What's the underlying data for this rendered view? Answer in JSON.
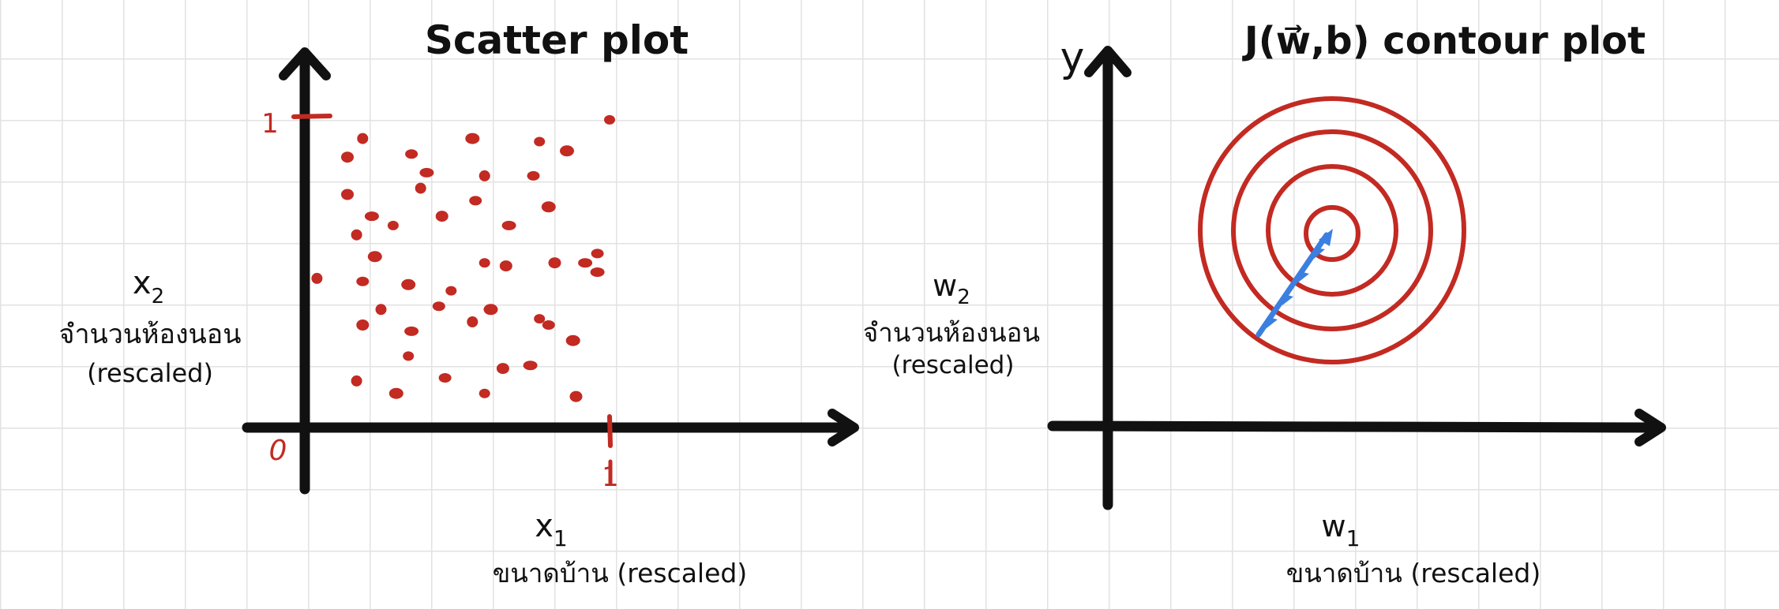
{
  "colors": {
    "ink": "#111111",
    "points": "#c22a22",
    "contour": "#c22a22",
    "arrow": "#3b7fe0",
    "grid": "#e2e2e2"
  },
  "scatter": {
    "title": "Scatter plot",
    "x_label": "x",
    "x_subscript": "1",
    "x_desc": "ขนาดบ้าน (rescaled)",
    "y_label": "x",
    "y_subscript": "2",
    "y_desc_line1": "จำนวนห้องนอน",
    "y_desc_line2": "(rescaled)",
    "origin_label": "0",
    "x_tick_label": "1",
    "y_tick_label": "1"
  },
  "contour": {
    "title": "J(w⃗,b) contour plot",
    "y_axis_label": "y",
    "x_label": "w",
    "x_subscript": "1",
    "x_desc": "ขนาดบ้าน (rescaled)",
    "y_label": "w",
    "y_subscript": "2",
    "y_desc_line1": "จำนวนห้องนอน",
    "y_desc_line2": "(rescaled)"
  },
  "chart_data": [
    {
      "type": "scatter",
      "title": "Scatter plot",
      "xlabel": "x1 ขนาดบ้าน (rescaled)",
      "ylabel": "x2 จำนวนห้องนอน (rescaled)",
      "xlim": [
        0,
        1
      ],
      "ylim": [
        0,
        1
      ],
      "grid": true,
      "points": [
        [
          0.19,
          0.93
        ],
        [
          0.35,
          0.88
        ],
        [
          0.55,
          0.93
        ],
        [
          0.77,
          0.92
        ],
        [
          0.14,
          0.87
        ],
        [
          0.4,
          0.82
        ],
        [
          0.59,
          0.81
        ],
        [
          0.75,
          0.81
        ],
        [
          0.86,
          0.89
        ],
        [
          1.0,
          0.99
        ],
        [
          0.14,
          0.75
        ],
        [
          0.22,
          0.68
        ],
        [
          0.38,
          0.77
        ],
        [
          0.56,
          0.73
        ],
        [
          0.8,
          0.71
        ],
        [
          0.29,
          0.65
        ],
        [
          0.45,
          0.68
        ],
        [
          0.67,
          0.65
        ],
        [
          0.17,
          0.62
        ],
        [
          0.96,
          0.56
        ],
        [
          0.23,
          0.55
        ],
        [
          0.59,
          0.53
        ],
        [
          0.82,
          0.53
        ],
        [
          0.92,
          0.53
        ],
        [
          0.04,
          0.48
        ],
        [
          0.19,
          0.47
        ],
        [
          0.34,
          0.46
        ],
        [
          0.48,
          0.44
        ],
        [
          0.66,
          0.52
        ],
        [
          0.96,
          0.5
        ],
        [
          0.25,
          0.38
        ],
        [
          0.44,
          0.39
        ],
        [
          0.61,
          0.38
        ],
        [
          0.77,
          0.35
        ],
        [
          0.19,
          0.33
        ],
        [
          0.35,
          0.31
        ],
        [
          0.55,
          0.34
        ],
        [
          0.8,
          0.33
        ],
        [
          0.88,
          0.28
        ],
        [
          0.34,
          0.23
        ],
        [
          0.65,
          0.19
        ],
        [
          0.74,
          0.2
        ],
        [
          0.17,
          0.15
        ],
        [
          0.46,
          0.16
        ],
        [
          0.3,
          0.11
        ],
        [
          0.59,
          0.11
        ],
        [
          0.89,
          0.1
        ]
      ]
    },
    {
      "type": "contour",
      "title": "J(w⃗,b) contour plot",
      "xlabel": "w1 ขนาดบ้าน (rescaled)",
      "ylabel": "w2 จำนวนห้องนอน (rescaled)",
      "contour_levels": 4,
      "contour_shape": "circular",
      "gradient_descent_path": "straight path from the outer contour toward the center"
    }
  ]
}
